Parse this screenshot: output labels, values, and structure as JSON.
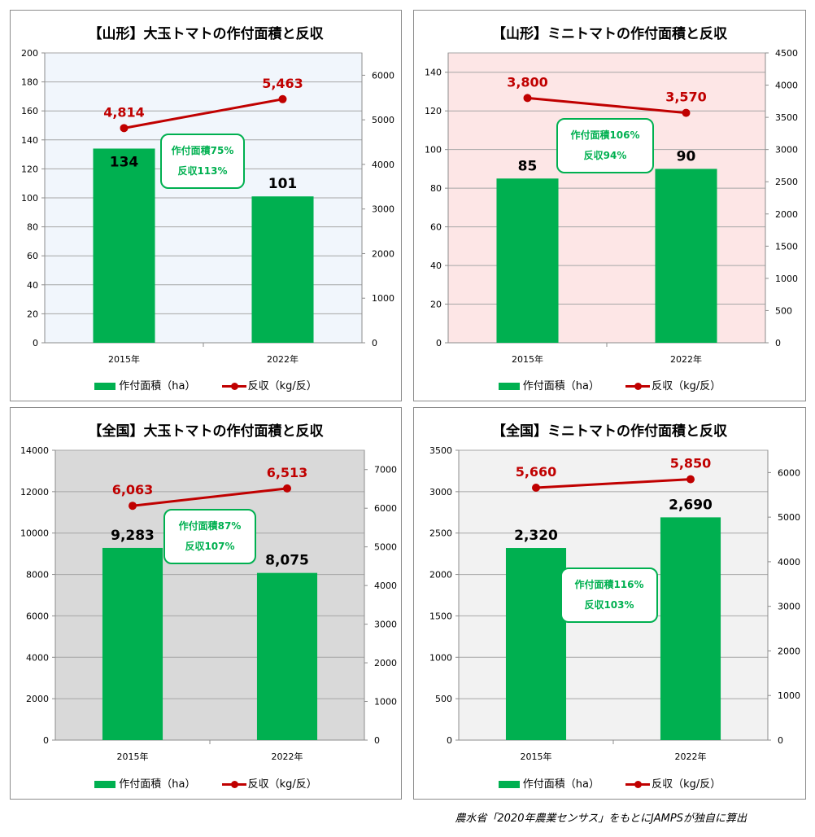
{
  "colors": {
    "bar": "#00b050",
    "line": "#c00000",
    "callout": "#00b050"
  },
  "source_note": "農水省「2020年農業センサス」をもとにJAMPSが独自に算出",
  "chart_data": [
    {
      "type": "bar",
      "title": "【山形】大玉トマトの作付面積と反収",
      "categories": [
        "2015年",
        "2022年"
      ],
      "series": [
        {
          "name": "作付面積（ha）",
          "type": "bar",
          "axis": "left",
          "values": [
            134,
            101
          ],
          "labels": [
            "134",
            "101"
          ]
        },
        {
          "name": "反収（kg/反）",
          "type": "line",
          "axis": "right",
          "values": [
            4814,
            5463
          ],
          "labels": [
            "4,814",
            "5,463"
          ]
        }
      ],
      "y_left": {
        "min": 0,
        "max": 200,
        "ticks": [
          "0",
          "20",
          "40",
          "60",
          "80",
          "100",
          "120",
          "140",
          "160",
          "180",
          "200"
        ]
      },
      "y_right": {
        "min": 0,
        "max": 6500,
        "ticks": [
          "0",
          "1000",
          "2000",
          "3000",
          "4000",
          "5000",
          "6000"
        ]
      },
      "plot_bg": "#f1f6fc",
      "callout": {
        "line1": "作付面積75%",
        "line2": "反収113%"
      },
      "grid": true,
      "legend": "bottom"
    },
    {
      "type": "bar",
      "title": "【山形】ミニトマトの作付面積と反収",
      "categories": [
        "2015年",
        "2022年"
      ],
      "series": [
        {
          "name": "作付面積（ha）",
          "type": "bar",
          "axis": "left",
          "values": [
            85,
            90
          ],
          "labels": [
            "85",
            "90"
          ]
        },
        {
          "name": "反収（kg/反）",
          "type": "line",
          "axis": "right",
          "values": [
            3800,
            3570
          ],
          "labels": [
            "3,800",
            "3,570"
          ]
        }
      ],
      "y_left": {
        "min": 0,
        "max": 150,
        "ticks": [
          "0",
          "20",
          "40",
          "60",
          "80",
          "100",
          "120",
          "140"
        ]
      },
      "y_right": {
        "min": 0,
        "max": 4500,
        "ticks": [
          "0",
          "500",
          "1000",
          "1500",
          "2000",
          "2500",
          "3000",
          "3500",
          "4000",
          "4500"
        ]
      },
      "plot_bg": "#fde6e6",
      "callout": {
        "line1": "作付面積106%",
        "line2": "反収94%"
      },
      "grid": true,
      "legend": "bottom"
    },
    {
      "type": "bar",
      "title": "【全国】大玉トマトの作付面積と反収",
      "categories": [
        "2015年",
        "2022年"
      ],
      "series": [
        {
          "name": "作付面積（ha）",
          "type": "bar",
          "axis": "left",
          "values": [
            9283,
            8075
          ],
          "labels": [
            "9,283",
            "8,075"
          ]
        },
        {
          "name": "反収（kg/反）",
          "type": "line",
          "axis": "right",
          "values": [
            6063,
            6513
          ],
          "labels": [
            "6,063",
            "6,513"
          ]
        }
      ],
      "y_left": {
        "min": 0,
        "max": 14000,
        "ticks": [
          "0",
          "2000",
          "4000",
          "6000",
          "8000",
          "10000",
          "12000",
          "14000"
        ]
      },
      "y_right": {
        "min": 0,
        "max": 7500,
        "ticks": [
          "0",
          "1000",
          "2000",
          "3000",
          "4000",
          "5000",
          "6000",
          "7000"
        ]
      },
      "plot_bg": "#d9d9d9",
      "callout": {
        "line1": "作付面積87%",
        "line2": "反収107%"
      },
      "grid": true,
      "legend": "bottom"
    },
    {
      "type": "bar",
      "title": "【全国】ミニトマトの作付面積と反収",
      "categories": [
        "2015年",
        "2022年"
      ],
      "series": [
        {
          "name": "作付面積（ha）",
          "type": "bar",
          "axis": "left",
          "values": [
            2320,
            2690
          ],
          "labels": [
            "2,320",
            "2,690"
          ]
        },
        {
          "name": "反収（kg/反）",
          "type": "line",
          "axis": "right",
          "values": [
            5660,
            5850
          ],
          "labels": [
            "5,660",
            "5,850"
          ]
        }
      ],
      "y_left": {
        "min": 0,
        "max": 3500,
        "ticks": [
          "0",
          "500",
          "1000",
          "1500",
          "2000",
          "2500",
          "3000",
          "3500"
        ]
      },
      "y_right": {
        "min": 0,
        "max": 6500,
        "ticks": [
          "0",
          "1000",
          "2000",
          "3000",
          "4000",
          "5000",
          "6000"
        ]
      },
      "plot_bg": "#f2f2f2",
      "callout": {
        "line1": "作付面積116%",
        "line2": "反収103%"
      },
      "grid": true,
      "legend": "bottom"
    }
  ]
}
